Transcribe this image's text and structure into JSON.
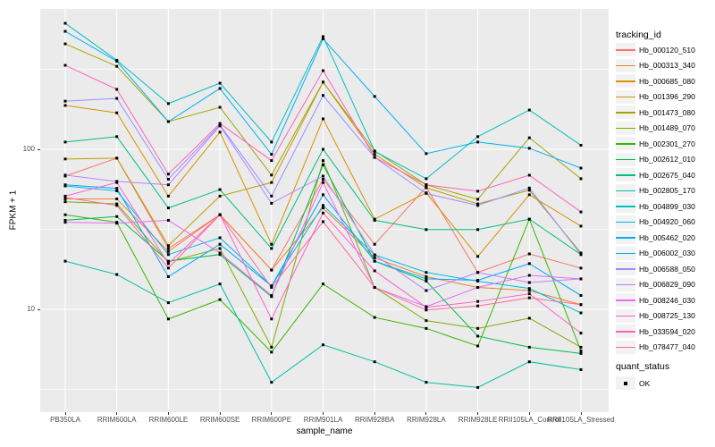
{
  "style": {
    "panel_bg": "#EBEBEB",
    "grid_color": "#FFFFFF",
    "tick_label_color": "#4D4D4D",
    "tick_mark_color": "#333333",
    "point_color": "#000000",
    "legend_key_bg": "#F2F2F2"
  },
  "legend": {
    "tracking_title": "tracking_id",
    "quant_title": "quant_status",
    "quant_items": [
      {
        "label": "OK",
        "marker": "black-square"
      }
    ]
  },
  "chart_data": {
    "type": "line",
    "title": "",
    "xlabel": "sample_name",
    "ylabel": "FPKM + 1",
    "y_scale": "log10",
    "ylim": [
      2.3,
      750
    ],
    "grid": "on",
    "legend_position": "right",
    "point_marker": "small-black-square",
    "y_ticks": [
      100,
      10
    ],
    "y_tick_labels": [
      "100",
      "10"
    ],
    "y_minor_gridlines": [
      316,
      31.6,
      3.16
    ],
    "categories": [
      "PB350LA",
      "RRIM600LA",
      "RRIM600LE",
      "RRIM600SE",
      "RRIM600PE",
      "RRIM901LA",
      "RRIM928BA",
      "RRIM928LA",
      "RRIM928LE",
      "RRII105LA_Control",
      "RRII105LA_Stressed"
    ],
    "series": [
      {
        "name": "Hb_000120_510",
        "color": "#F8766D",
        "values": [
          68,
          88,
          24,
          39,
          17.6,
          65,
          25.5,
          58,
          17,
          22.2,
          18.1
        ]
      },
      {
        "name": "Hb_000313_340",
        "color": "#EA8331",
        "values": [
          49,
          49,
          23,
          39,
          17.6,
          43,
          21,
          16,
          13.7,
          13.1,
          10.7
        ]
      },
      {
        "name": "Hb_000685_080",
        "color": "#D89000",
        "values": [
          188,
          169,
          51,
          128,
          25.5,
          155,
          36.6,
          53.5,
          21.4,
          52,
          33.1
        ]
      },
      {
        "name": "Hb_001396_290",
        "color": "#C09B00",
        "values": [
          87,
          88,
          25,
          51,
          62,
          263,
          93,
          57.5,
          45.6,
          55.5,
          22.5
        ]
      },
      {
        "name": "Hb_001473_080",
        "color": "#A3A500",
        "values": [
          456,
          330,
          149,
          183,
          69,
          263,
          97.7,
          60,
          48.7,
          118,
          65.5
        ]
      },
      {
        "name": "Hb_001489_070",
        "color": "#7CAE00",
        "values": [
          47,
          45.6,
          19.8,
          24,
          5.8,
          85,
          13.7,
          8.5,
          7.6,
          8.8,
          5.8
        ]
      },
      {
        "name": "Hb_002301_270",
        "color": "#39B600",
        "values": [
          39,
          35,
          8.7,
          11.5,
          5.4,
          14.4,
          8.9,
          7.6,
          5.9,
          36.6,
          5.5
        ]
      },
      {
        "name": "Hb_002612_010",
        "color": "#00BB4E",
        "values": [
          36,
          38,
          20,
          22,
          12,
          80,
          20,
          15,
          6.8,
          5.8,
          5.3
        ]
      },
      {
        "name": "Hb_002675_040",
        "color": "#00BF7D",
        "values": [
          111,
          120,
          43,
          56,
          24,
          100,
          36,
          31.5,
          31.5,
          36.6,
          22
        ]
      },
      {
        "name": "Hb_002805_170",
        "color": "#00C1A3",
        "values": [
          20,
          16.5,
          11,
          14.4,
          3.5,
          6,
          4.7,
          3.5,
          3.25,
          4.7,
          4.2
        ]
      },
      {
        "name": "Hb_004899_030",
        "color": "#00BFC4",
        "values": [
          613,
          360,
          193,
          259,
          111,
          506,
          97,
          65.5,
          120,
          176,
          106
        ]
      },
      {
        "name": "Hb_004920_060",
        "color": "#00BAE0",
        "values": [
          59,
          55,
          22,
          28,
          14,
          44.6,
          21.9,
          17,
          15,
          13.5,
          9.5
        ]
      },
      {
        "name": "Hb_005462_020",
        "color": "#00B0F6",
        "values": [
          546,
          355,
          149,
          240,
          93,
          490,
          214,
          94,
          111,
          101.5,
          76.3
        ]
      },
      {
        "name": "Hb_006002_030",
        "color": "#00A5FF",
        "values": [
          60,
          57,
          16,
          25.5,
          14,
          52,
          20,
          15.5,
          15.2,
          19.3,
          12.2
        ]
      },
      {
        "name": "Hb_006588_050",
        "color": "#9590FF",
        "values": [
          200,
          208,
          65,
          142,
          51,
          217,
          89,
          53,
          44.6,
          57.3,
          22
        ]
      },
      {
        "name": "Hb_006829_090",
        "color": "#B983FF",
        "values": [
          69,
          63,
          60,
          140,
          46,
          68,
          21.9,
          13.1,
          17,
          14.7,
          15.5
        ]
      },
      {
        "name": "Hb_008246_030",
        "color": "#E76BF3",
        "values": [
          35,
          34.5,
          36,
          22.5,
          12.2,
          62,
          13.7,
          10.4,
          13.7,
          16.3,
          15.5
        ]
      },
      {
        "name": "Hb_008725_130",
        "color": "#FD61D1",
        "values": [
          51,
          62,
          19.3,
          39,
          8.7,
          40,
          17.4,
          10.3,
          11.2,
          12.5,
          7.1
        ]
      },
      {
        "name": "Hb_033594_020",
        "color": "#FF62BC",
        "values": [
          335,
          237,
          70,
          145,
          85,
          310,
          89,
          60,
          54.7,
          68.9,
          40.6
        ]
      },
      {
        "name": "Hb_078477_040",
        "color": "#FF6A98",
        "values": [
          50,
          44.6,
          18.1,
          39,
          13.7,
          35.3,
          13.7,
          9.9,
          10.5,
          11.8,
          10.7
        ]
      }
    ]
  }
}
